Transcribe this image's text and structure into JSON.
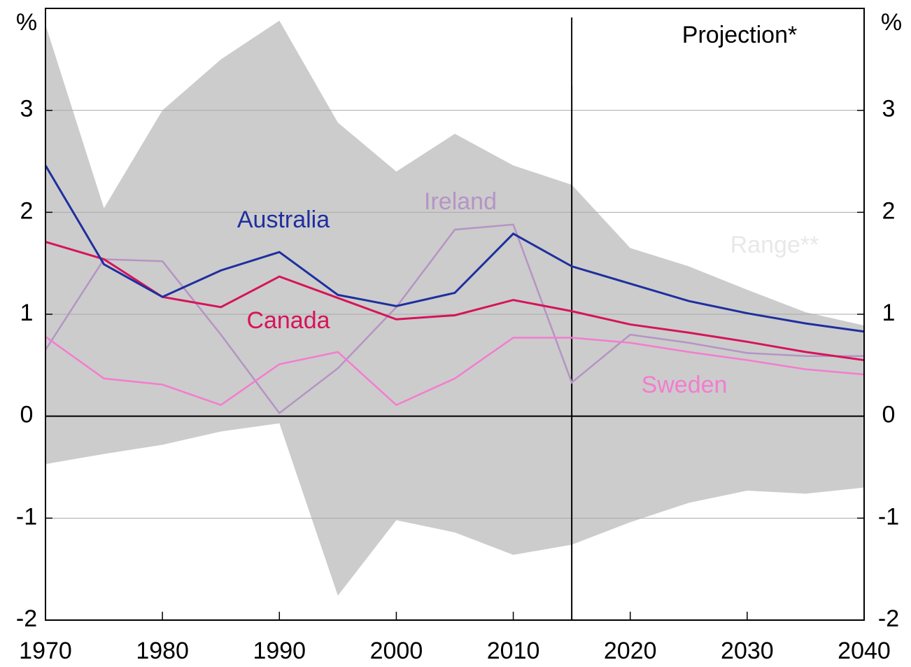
{
  "chart_data": {
    "type": "line",
    "y_unit": "%",
    "y2_unit": "%",
    "x": [
      1970,
      1975,
      1980,
      1985,
      1990,
      1995,
      2000,
      2005,
      2010,
      2015,
      2020,
      2025,
      2030,
      2035,
      2040
    ],
    "xlim": [
      1970,
      2040
    ],
    "xticks": [
      1970,
      1980,
      1990,
      2000,
      2010,
      2020,
      2030,
      2040
    ],
    "ylim": [
      -2,
      4
    ],
    "yticks": [
      -2,
      -1,
      0,
      1,
      2,
      3
    ],
    "y2lim": [
      -2,
      4
    ],
    "y2ticks": [
      -2,
      -1,
      0,
      1,
      2,
      3
    ],
    "grid": true,
    "projection_x": 2015,
    "projection_label": "Projection*",
    "range": {
      "name": "Range**",
      "color": "#cccccc",
      "label_color": "#e8e8e8",
      "upper": [
        3.84,
        2.04,
        3.0,
        3.5,
        3.88,
        2.88,
        2.4,
        2.77,
        2.46,
        2.27,
        1.65,
        1.47,
        1.24,
        1.02,
        0.89
      ],
      "lower": [
        -0.47,
        -0.37,
        -0.28,
        -0.15,
        -0.07,
        -1.76,
        -1.02,
        -1.14,
        -1.36,
        -1.26,
        -1.04,
        -0.85,
        -0.73,
        -0.76,
        -0.7
      ]
    },
    "series": [
      {
        "name": "Ireland",
        "color": "#b594c4",
        "values": [
          0.65,
          1.54,
          1.52,
          0.8,
          0.03,
          0.47,
          1.07,
          1.83,
          1.88,
          0.33,
          0.8,
          0.72,
          0.62,
          0.59,
          0.59
        ]
      },
      {
        "name": "Sweden",
        "color": "#f47ccf",
        "values": [
          0.78,
          0.37,
          0.31,
          0.11,
          0.51,
          0.63,
          0.11,
          0.37,
          0.77,
          0.77,
          0.72,
          0.63,
          0.55,
          0.46,
          0.41
        ]
      },
      {
        "name": "Canada",
        "color": "#d6145a",
        "values": [
          1.71,
          1.54,
          1.17,
          1.07,
          1.37,
          1.16,
          0.95,
          0.99,
          1.14,
          1.03,
          0.9,
          0.82,
          0.73,
          0.63,
          0.55
        ]
      },
      {
        "name": "Australia",
        "color": "#1f2f9f",
        "values": [
          2.46,
          1.49,
          1.17,
          1.43,
          1.61,
          1.19,
          1.08,
          1.21,
          1.79,
          1.47,
          1.3,
          1.13,
          1.01,
          0.91,
          0.83
        ]
      }
    ]
  }
}
